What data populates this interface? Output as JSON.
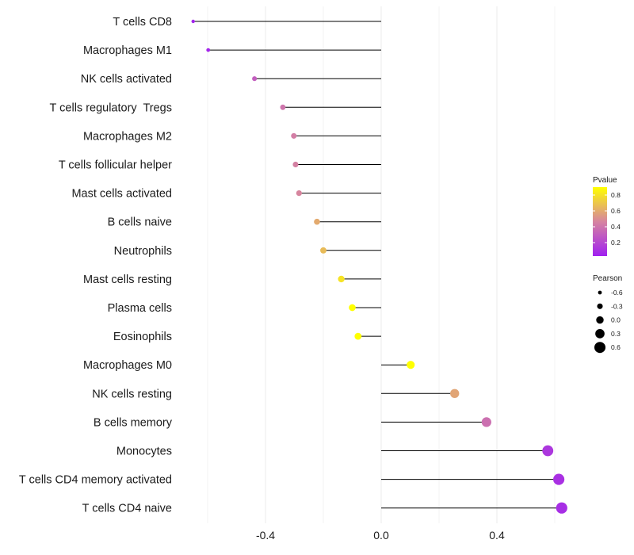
{
  "chart_data": {
    "type": "lollipop",
    "title": "",
    "xlabel": "",
    "ylabel": "",
    "xlim": [
      -0.65,
      0.64
    ],
    "xticks": [
      "-0.4",
      "0.0",
      "0.4"
    ],
    "xtick_values": [
      -0.4,
      0.0,
      0.4
    ],
    "categories": [
      "T cells CD8",
      "Macrophages M1",
      "NK cells activated",
      "T cells regulatory  Tregs",
      "Macrophages M2",
      "T cells follicular helper",
      "Mast cells activated",
      "B cells naive",
      "Neutrophils",
      "Mast cells resting",
      "Plasma cells",
      "Eosinophils",
      "Macrophages M0",
      "NK cells resting",
      "B cells memory",
      "Monocytes",
      "T cells CD4 memory activated",
      "T cells CD4 naive"
    ],
    "pearson": [
      -0.65,
      -0.598,
      -0.438,
      -0.34,
      -0.302,
      -0.296,
      -0.284,
      -0.222,
      -0.2,
      -0.138,
      -0.1,
      -0.08,
      0.102,
      0.254,
      0.364,
      0.576,
      0.614,
      0.624
    ],
    "pvalue": [
      0.05,
      0.06,
      0.3,
      0.4,
      0.44,
      0.45,
      0.47,
      0.6,
      0.66,
      0.8,
      0.9,
      0.93,
      0.92,
      0.58,
      0.38,
      0.13,
      0.1,
      0.09
    ],
    "color_legend": {
      "title": "Pvalue",
      "ticks": [
        "0.8",
        "0.6",
        "0.4",
        "0.2"
      ],
      "tick_values": [
        0.8,
        0.6,
        0.4,
        0.2
      ],
      "range": [
        0.03,
        0.9
      ],
      "low_color": "#A020F0",
      "high_color": "#FFFF00"
    },
    "size_legend": {
      "title": "Pearson",
      "labels": [
        "-0.6",
        "-0.3",
        "0.0",
        "0.3",
        "0.6"
      ],
      "values": [
        -0.6,
        -0.3,
        0.0,
        0.3,
        0.6
      ]
    },
    "colors": {
      "stem": "#000000",
      "grid": "#ebebeb"
    }
  }
}
